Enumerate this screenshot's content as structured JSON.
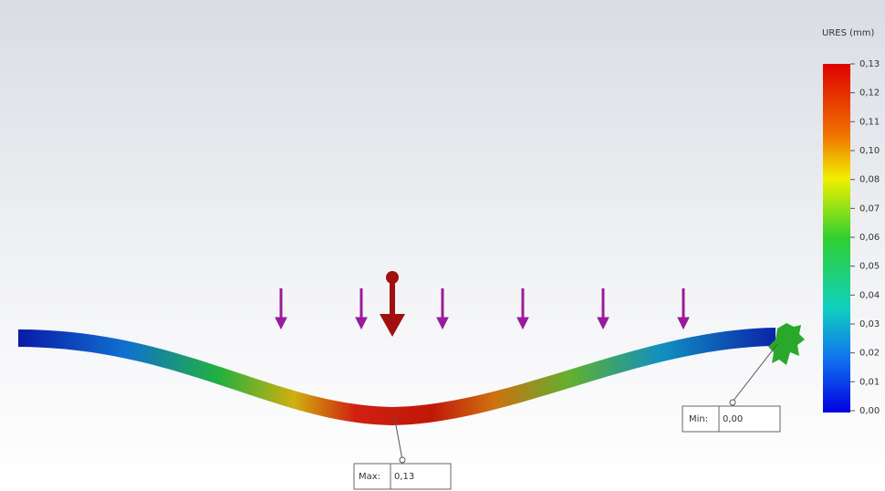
{
  "legend": {
    "title": "URES (mm)",
    "labels": [
      "0,13",
      "0,12",
      "0,11",
      "0,10",
      "0,08",
      "0,07",
      "0,06",
      "0,05",
      "0,04",
      "0,03",
      "0,02",
      "0,01",
      "0,00"
    ]
  },
  "probes": {
    "max": {
      "label": "Max:",
      "value": "0,13"
    },
    "min": {
      "label": "Min:",
      "value": "0,00"
    }
  }
}
